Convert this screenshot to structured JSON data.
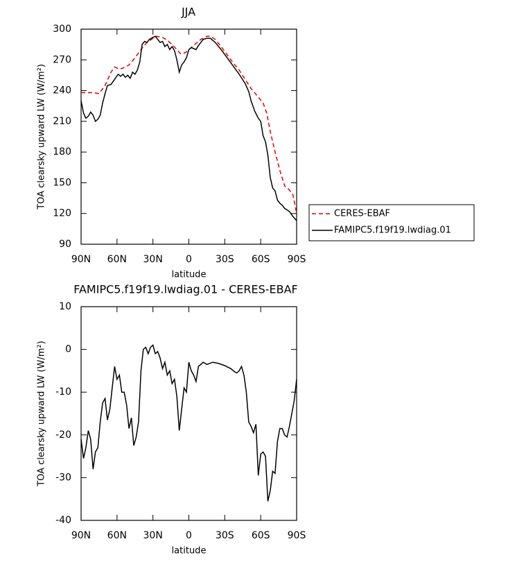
{
  "chart_data": [
    {
      "type": "line",
      "title": "JJA",
      "x_label": "latitude",
      "y_label": "TOA clearsky upward LW (W/m²)",
      "xlim": [
        90,
        -90
      ],
      "xticks": [
        {
          "value": 90,
          "label": "90N"
        },
        {
          "value": 60,
          "label": "60N"
        },
        {
          "value": 30,
          "label": "30N"
        },
        0,
        {
          "value": -30,
          "label": "30S"
        },
        {
          "value": -60,
          "label": "60S"
        },
        {
          "value": -90,
          "label": "90S"
        }
      ],
      "ylim": [
        90,
        300
      ],
      "yticks": [
        90,
        120,
        150,
        180,
        210,
        240,
        270,
        300
      ],
      "legend": "right",
      "series": [
        {
          "name": "CERES-EBAF",
          "color": "#e00000",
          "dash": true,
          "x": [
            90,
            80,
            75,
            70,
            65,
            62,
            58,
            55,
            50,
            45,
            40,
            35,
            30,
            27,
            22,
            18,
            14,
            10,
            7,
            3,
            0,
            -5,
            -10,
            -15,
            -18,
            -22,
            -27,
            -32,
            -37,
            -42,
            -47,
            -52,
            -57,
            -62,
            -65,
            -68,
            -72,
            -76,
            -80,
            -84,
            -87,
            -90
          ],
          "values": [
            238,
            238,
            237,
            245,
            258,
            263,
            261,
            262,
            265,
            272,
            280,
            287,
            291,
            293,
            292,
            289,
            285,
            280,
            276,
            277,
            280,
            285,
            290,
            293,
            293,
            290,
            283,
            275,
            267,
            260,
            251,
            242,
            235,
            228,
            218,
            200,
            180,
            162,
            147,
            143,
            138,
            120
          ]
        },
        {
          "name": "FAMIPC5.f19f19.lwdiag.01",
          "color": "#000000",
          "dash": false,
          "x": [
            90,
            88,
            86,
            84,
            82,
            80,
            78,
            76,
            74,
            72,
            70,
            68,
            65,
            62,
            59,
            57,
            55,
            53,
            51,
            49,
            47,
            45,
            43,
            41,
            39,
            37,
            35,
            33,
            30,
            28,
            26,
            24,
            22,
            20,
            18,
            16,
            14,
            12,
            10,
            8,
            6,
            4,
            2,
            0,
            -2,
            -4,
            -6,
            -8,
            -10,
            -12,
            -15,
            -18,
            -22,
            -27,
            -32,
            -37,
            -42,
            -47,
            -50,
            -52,
            -55,
            -58,
            -60,
            -62,
            -64,
            -66,
            -68,
            -70,
            -72,
            -74,
            -76,
            -78,
            -80,
            -84,
            -87,
            -90
          ],
          "values": [
            230,
            218,
            213,
            215,
            219,
            216,
            210,
            212,
            216,
            228,
            237,
            245,
            246,
            251,
            256,
            254,
            256,
            253,
            255,
            252,
            258,
            256,
            260,
            268,
            285,
            288,
            287,
            290,
            292,
            293,
            290,
            287,
            288,
            283,
            285,
            280,
            283,
            279,
            270,
            258,
            265,
            268,
            272,
            280,
            282,
            281,
            280,
            284,
            287,
            290,
            291,
            291,
            287,
            280,
            272,
            264,
            256,
            247,
            239,
            230,
            220,
            213,
            210,
            196,
            190,
            177,
            155,
            145,
            142,
            133,
            130,
            128,
            125,
            122,
            117,
            113
          ]
        }
      ]
    },
    {
      "type": "line",
      "title": "FAMIPC5.f19f19.lwdiag.01 - CERES-EBAF",
      "x_label": "latitude",
      "y_label": "TOA clearsky upward LW (W/m²)",
      "xlim": [
        90,
        -90
      ],
      "xticks": [
        {
          "value": 90,
          "label": "90N"
        },
        {
          "value": 60,
          "label": "60N"
        },
        {
          "value": 30,
          "label": "30N"
        },
        0,
        {
          "value": -30,
          "label": "30S"
        },
        {
          "value": -60,
          "label": "60S"
        },
        {
          "value": -90,
          "label": "90S"
        }
      ],
      "ylim": [
        -40,
        10
      ],
      "yticks": [
        -40,
        -30,
        -20,
        -10,
        0,
        10
      ],
      "series": [
        {
          "color": "#000000",
          "dash": false,
          "x": [
            90,
            88,
            86,
            84,
            82,
            80,
            78,
            76,
            74,
            72,
            70,
            68,
            66,
            64,
            62,
            60,
            58,
            56,
            54,
            52,
            50,
            48,
            46,
            44,
            42,
            40,
            38,
            36,
            34,
            32,
            30,
            28,
            26,
            24,
            22,
            20,
            18,
            16,
            14,
            12,
            10,
            8,
            6,
            4,
            2,
            0,
            -2,
            -4,
            -6,
            -8,
            -10,
            -12,
            -15,
            -20,
            -25,
            -30,
            -35,
            -38,
            -40,
            -42,
            -44,
            -46,
            -48,
            -50,
            -52,
            -54,
            -56,
            -58,
            -60,
            -62,
            -64,
            -66,
            -68,
            -70,
            -72,
            -74,
            -76,
            -78,
            -80,
            -82,
            -84,
            -86,
            -88,
            -90
          ],
          "values": [
            -21,
            -25.5,
            -23,
            -19,
            -21,
            -28,
            -24,
            -23,
            -17,
            -12.5,
            -11.5,
            -16.5,
            -14,
            -9,
            -4,
            -7,
            -6,
            -10,
            -10,
            -13,
            -18.5,
            -16,
            -22.5,
            -20.5,
            -17,
            -5,
            0,
            0.5,
            -1,
            0.5,
            1,
            -1,
            -0.5,
            -2,
            -4.5,
            -3,
            -6,
            -5,
            -8,
            -7,
            -11,
            -19,
            -14,
            -9,
            -10,
            -3,
            -5,
            -6,
            -7.5,
            -4,
            -3.5,
            -3,
            -3.5,
            -3,
            -3.3,
            -3.8,
            -4.5,
            -5.2,
            -5.5,
            -5,
            -4,
            -6,
            -10,
            -17,
            -18,
            -19.5,
            -17.5,
            -29.5,
            -24.5,
            -24,
            -25,
            -35.5,
            -33,
            -28.5,
            -29,
            -21.5,
            -18.5,
            -18.5,
            -20,
            -20.5,
            -18,
            -15,
            -12,
            -7
          ]
        }
      ]
    }
  ]
}
